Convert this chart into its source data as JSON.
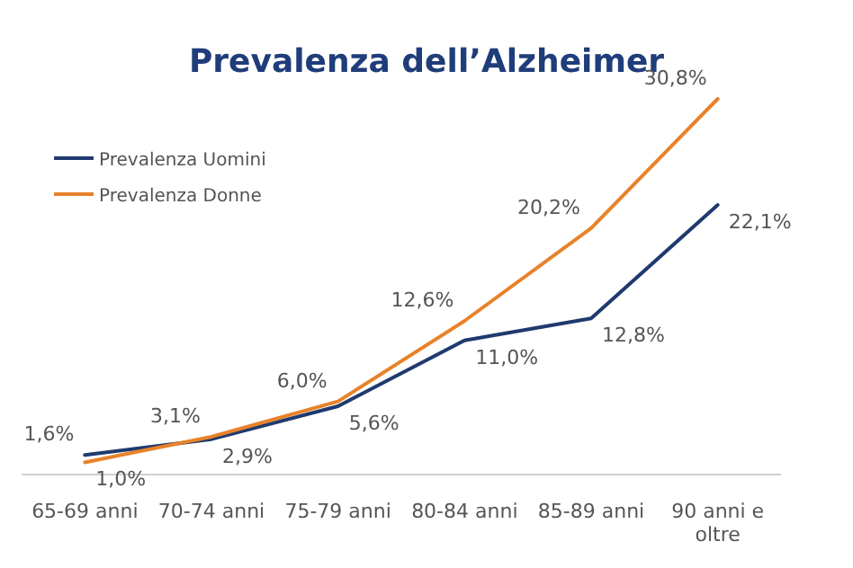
{
  "chart_data": {
    "type": "line",
    "title": "Prevalenza dell’Alzheimer",
    "categories": [
      "65-69 anni",
      "70-74 anni",
      "75-79 anni",
      "80-84 anni",
      "85-89 anni",
      "90 anni e oltre"
    ],
    "series": [
      {
        "name": "Prevalenza Uomini",
        "color": "#1f3a6e",
        "values": [
          1.6,
          2.9,
          5.6,
          11.0,
          12.8,
          22.1
        ],
        "value_labels": [
          "1,6%",
          "2,9%",
          "5,6%",
          "11,0%",
          "12,8%",
          "22,1%"
        ]
      },
      {
        "name": "Prevalenza Donne",
        "color": "#e8822a",
        "values": [
          1.0,
          3.1,
          6.0,
          12.6,
          20.2,
          30.8
        ],
        "value_labels": [
          "1,0%",
          "3,1%",
          "6,0%",
          "12,6%",
          "20,2%",
          "30,8%"
        ]
      }
    ],
    "legend": "top left"
  }
}
